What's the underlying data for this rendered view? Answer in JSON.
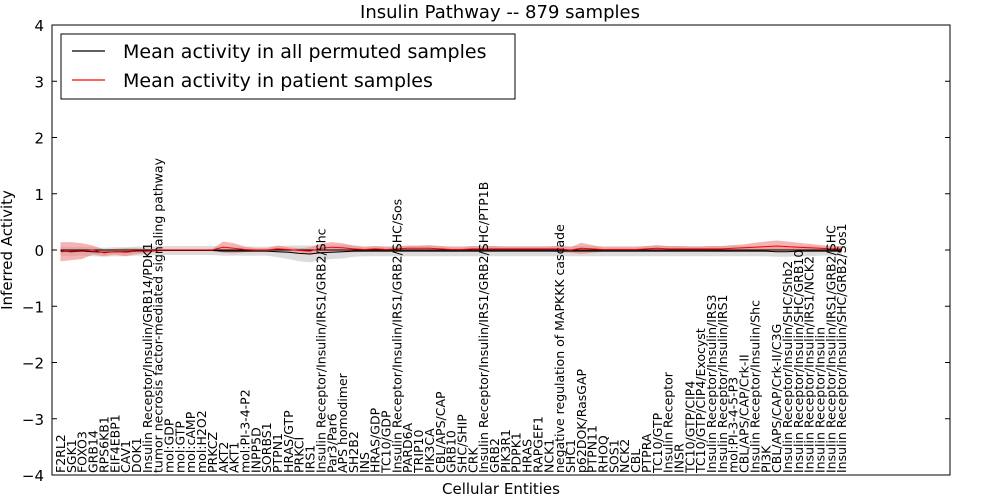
{
  "chart_data": {
    "type": "line",
    "title": "Insulin Pathway -- 879 samples",
    "xlabel": "Cellular Entities",
    "ylabel": "Inferred Activity",
    "ylim": [
      -4,
      4
    ],
    "yticks": [
      "−4",
      "−3",
      "−2",
      "−1",
      "0",
      "1",
      "2",
      "3",
      "4"
    ],
    "legend_position": "top-left",
    "categories": [
      "F2RL2",
      "SGK1",
      "FOXO3",
      "GRB14",
      "RPS6KB1",
      "EIF4EBP1",
      "CAV1",
      "DOK1",
      "Insulin Receptor/Insulin/GRB14/PDK1",
      "tumor necrosis factor-mediated signaling pathway",
      "mol:GDP",
      "mol:GTP",
      "mol:cAMP",
      "mol:H2O2",
      "PRKCZ",
      "AKT2",
      "AKT1",
      "mol:PI-3-4-P2",
      "INPP5D",
      "SORBS1",
      "PTPN1",
      "HRAS/GTP",
      "PRKCI",
      "IRS1",
      "Insulin Receptor/Insulin/IRS1/GRB2/Shc",
      "Par3/Par6",
      "APS homodimer",
      "SH2B2",
      "INS",
      "HRAS/GDP",
      "TC10/GDP",
      "Insulin Receptor/Insulin/IRS1/GRB2/SHC/Sos",
      "PARD6A",
      "TRIP10",
      "PIK3CA",
      "CBL/APS/CAP",
      "GRB10",
      "SHC/SHIP",
      "CRK",
      "Insulin Receptor/Insulin/IRS1/GRB2/SHC/PTP1B",
      "GRB2",
      "PIK3R1",
      "PDPK1",
      "HRAS",
      "RAPGEF1",
      "NCK1",
      "negative regulation of MAPKKK cascade",
      "SHC1",
      "p62DOK/RasGAP",
      "PTPN11",
      "RHOQ",
      "SOS1",
      "NCK2",
      "CBL",
      "PTPRA",
      "TC10/GTP",
      "Insulin Receptor",
      "INSR",
      "TC10/GTP/CIP4",
      "TC10/GTP/CIP4/Exocyst",
      "Insulin Receptor/Insulin/IRS3",
      "Insulin Receptor/Insulin/IRS1",
      "mol:PI-3-4-5-P3",
      "CBL/APS/CAP/Crk-II",
      "Insulin Receptor/Insulin/Shc",
      "PI3K",
      "CBL/APS/CAP/Crk-II/C3G",
      "Insulin Receptor/Insulin/SHC/Shb2",
      "Insulin Receptor/Insulin/SHC/GRB10",
      "Insulin Receptor/Insulin/IRS1/NCK2",
      "Insulin Receptor/Insulin",
      "Insulin Receptor/Insulin/IRS1/GRB2/SHC",
      "Insulin Receptor/Insulin/SHC/GRB2/Sos1"
    ],
    "series": [
      {
        "name": "Mean activity in all permuted samples",
        "color": "#000000",
        "band_color": "#bfbfbf",
        "values": [
          -0.02,
          -0.03,
          -0.02,
          -0.03,
          -0.04,
          -0.03,
          -0.03,
          -0.02,
          -0.02,
          -0.01,
          -0.01,
          -0.01,
          -0.01,
          -0.01,
          -0.01,
          -0.02,
          -0.02,
          -0.02,
          -0.02,
          -0.02,
          -0.03,
          -0.04,
          -0.06,
          -0.07,
          -0.05,
          -0.04,
          -0.03,
          -0.02,
          -0.02,
          -0.02,
          -0.02,
          -0.02,
          -0.02,
          -0.02,
          -0.02,
          -0.02,
          -0.02,
          -0.02,
          -0.02,
          -0.02,
          -0.02,
          -0.02,
          -0.02,
          -0.02,
          -0.02,
          -0.02,
          -0.02,
          -0.02,
          -0.02,
          -0.02,
          -0.02,
          -0.02,
          -0.02,
          -0.02,
          -0.02,
          -0.02,
          -0.02,
          -0.02,
          -0.02,
          -0.02,
          -0.02,
          -0.02,
          -0.02,
          -0.02,
          -0.02,
          -0.02,
          -0.03,
          -0.03,
          -0.02,
          -0.02,
          -0.02,
          -0.02,
          -0.02
        ],
        "band": [
          0.08,
          0.08,
          0.08,
          0.08,
          0.08,
          0.08,
          0.08,
          0.08,
          0.08,
          0.08,
          0.08,
          0.08,
          0.08,
          0.08,
          0.08,
          0.08,
          0.08,
          0.08,
          0.08,
          0.08,
          0.1,
          0.12,
          0.14,
          0.15,
          0.13,
          0.12,
          0.12,
          0.1,
          0.09,
          0.09,
          0.09,
          0.09,
          0.09,
          0.09,
          0.09,
          0.09,
          0.09,
          0.09,
          0.09,
          0.09,
          0.09,
          0.09,
          0.09,
          0.09,
          0.09,
          0.09,
          0.09,
          0.09,
          0.09,
          0.09,
          0.09,
          0.09,
          0.09,
          0.09,
          0.09,
          0.09,
          0.09,
          0.09,
          0.09,
          0.09,
          0.09,
          0.09,
          0.09,
          0.09,
          0.09,
          0.09,
          0.09,
          0.09,
          0.09,
          0.09,
          0.08,
          0.08,
          0.08
        ]
      },
      {
        "name": "Mean activity in patient samples",
        "color": "#ff0000",
        "band_color": "#f08080",
        "values": [
          -0.03,
          -0.02,
          -0.02,
          0.0,
          -0.05,
          -0.03,
          -0.04,
          -0.02,
          -0.02,
          0.0,
          0.0,
          0.0,
          0.0,
          0.0,
          0.0,
          0.05,
          0.03,
          0.01,
          0.0,
          0.0,
          0.02,
          0.01,
          -0.01,
          -0.02,
          0.03,
          0.05,
          0.04,
          0.02,
          0.01,
          0.02,
          0.01,
          0.02,
          0.03,
          0.03,
          0.03,
          0.02,
          0.01,
          0.01,
          0.02,
          0.02,
          0.02,
          0.02,
          0.02,
          0.02,
          0.02,
          0.02,
          0.02,
          0.0,
          0.03,
          0.02,
          0.01,
          0.01,
          0.01,
          0.01,
          0.02,
          0.03,
          0.02,
          0.02,
          0.02,
          0.02,
          0.02,
          0.02,
          0.03,
          0.04,
          0.05,
          0.06,
          0.07,
          0.06,
          0.05,
          0.04,
          0.03,
          0.02,
          0.02
        ],
        "band": [
          0.17,
          0.16,
          0.14,
          0.08,
          0.06,
          0.05,
          0.07,
          0.05,
          0.04,
          0.02,
          0.02,
          0.02,
          0.02,
          0.02,
          0.02,
          0.1,
          0.09,
          0.05,
          0.03,
          0.03,
          0.06,
          0.04,
          0.04,
          0.07,
          0.08,
          0.09,
          0.08,
          0.06,
          0.04,
          0.05,
          0.04,
          0.04,
          0.05,
          0.05,
          0.06,
          0.05,
          0.04,
          0.04,
          0.05,
          0.05,
          0.05,
          0.04,
          0.04,
          0.04,
          0.04,
          0.04,
          0.06,
          0.05,
          0.1,
          0.07,
          0.04,
          0.04,
          0.04,
          0.04,
          0.05,
          0.06,
          0.05,
          0.05,
          0.04,
          0.04,
          0.05,
          0.05,
          0.06,
          0.06,
          0.08,
          0.09,
          0.1,
          0.09,
          0.08,
          0.07,
          0.06,
          0.05,
          0.05
        ]
      }
    ]
  }
}
